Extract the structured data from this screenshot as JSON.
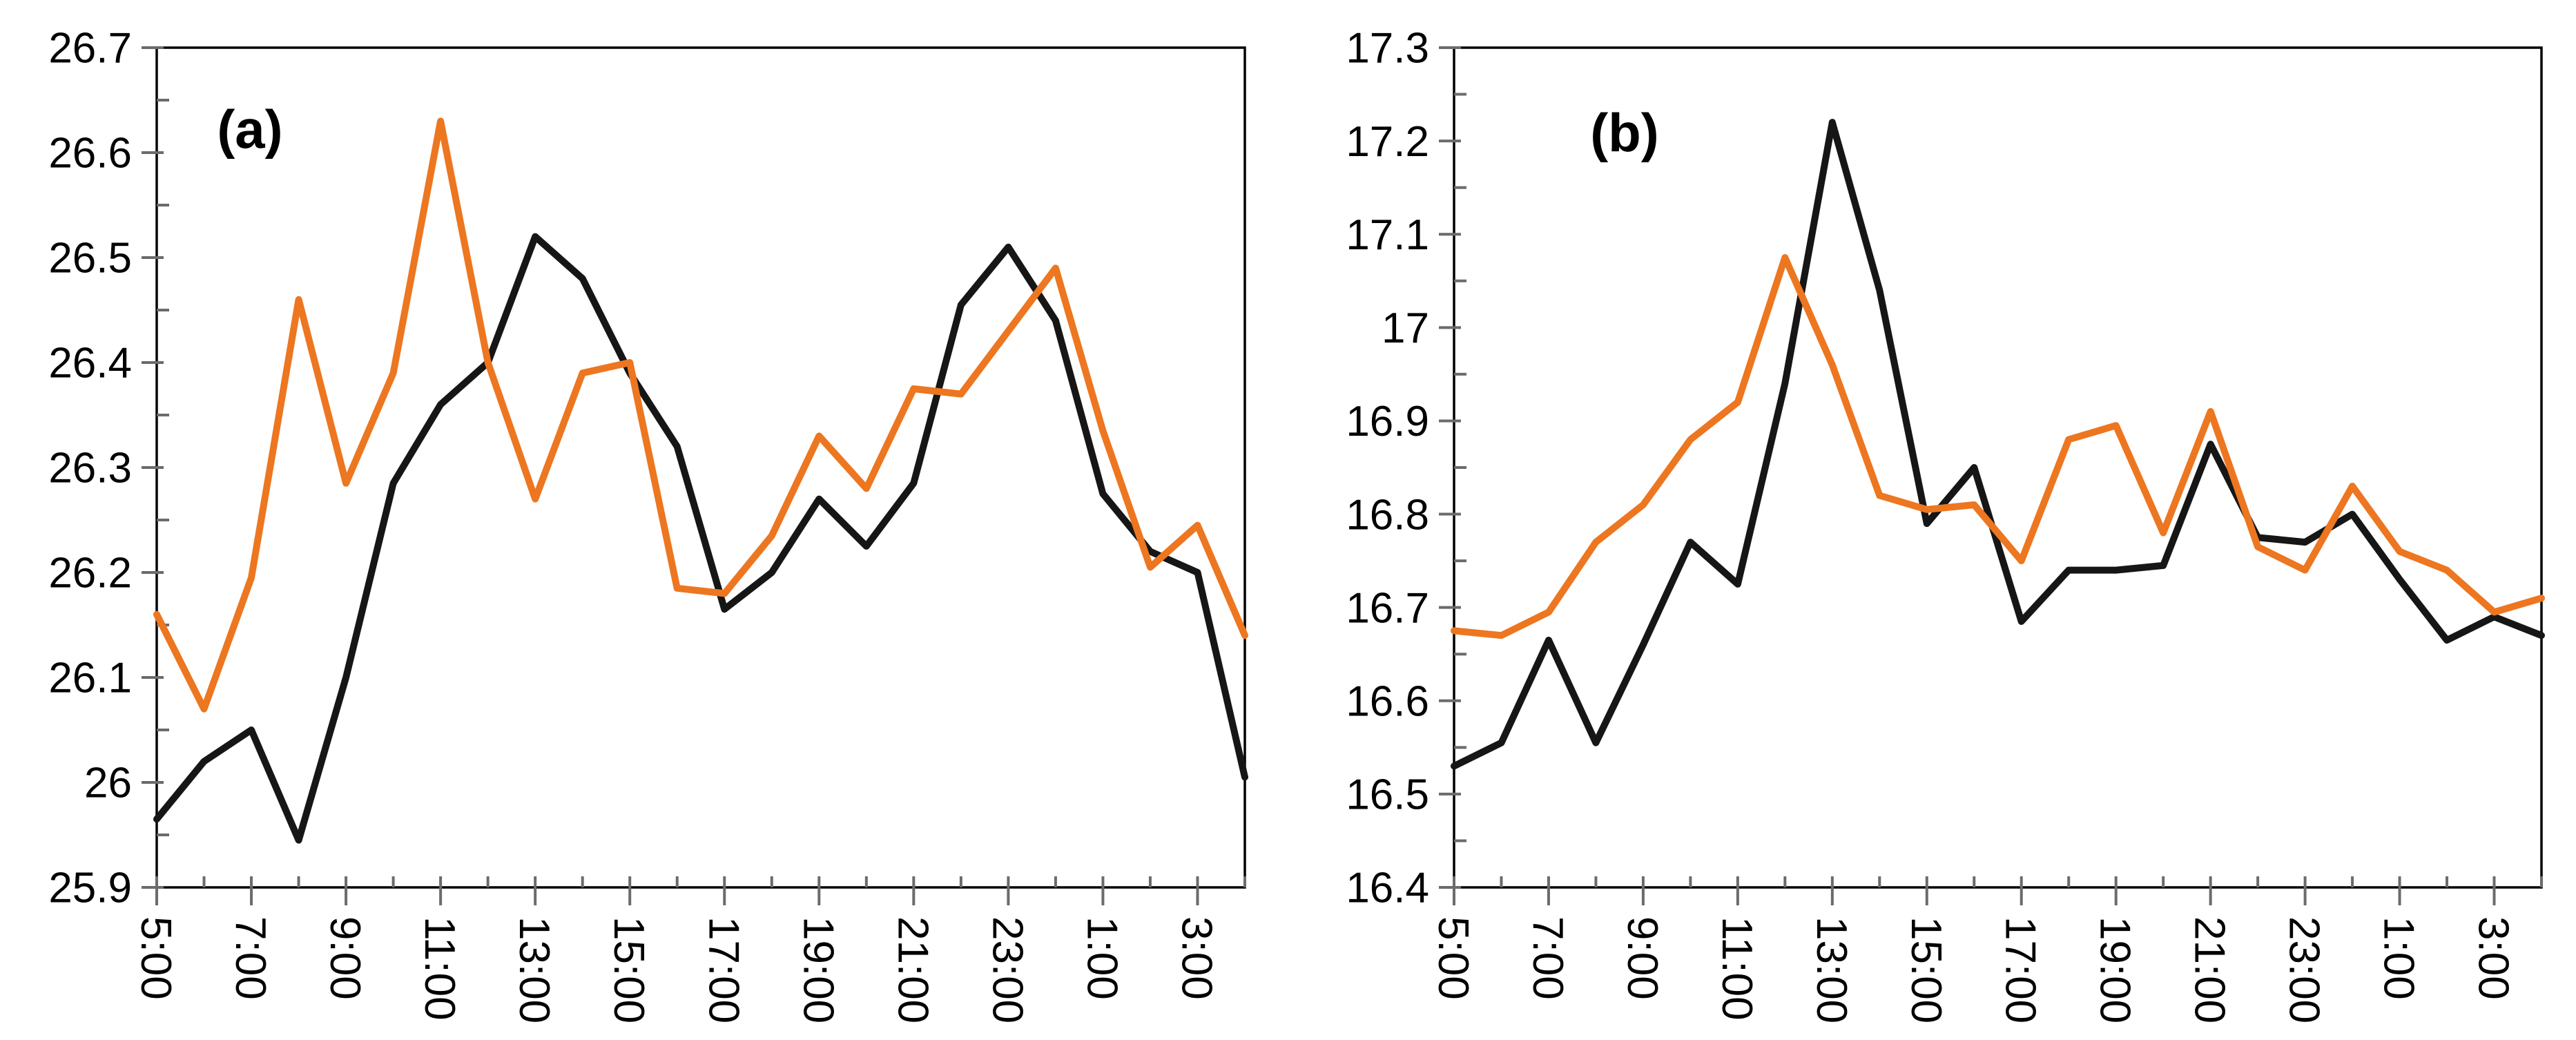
{
  "figure": {
    "background_color": "#ffffff",
    "description_visible_text_only": true
  },
  "chart_data": [
    {
      "type": "line",
      "panel_label": "(a)",
      "title": "",
      "xlabel": "",
      "ylabel": "",
      "grid": false,
      "legend": "none",
      "x": [
        "5:00",
        "6:00",
        "7:00",
        "8:00",
        "9:00",
        "10:00",
        "11:00",
        "12:00",
        "13:00",
        "14:00",
        "15:00",
        "16:00",
        "17:00",
        "18:00",
        "19:00",
        "20:00",
        "21:00",
        "22:00",
        "23:00",
        "0:00",
        "1:00",
        "2:00",
        "3:00",
        "4:00"
      ],
      "x_tick_labels_shown": [
        "5:00",
        "7:00",
        "9:00",
        "11:00",
        "13:00",
        "15:00",
        "17:00",
        "19:00",
        "21:00",
        "23:00",
        "1:00",
        "3:00"
      ],
      "ylim": [
        25.9,
        26.7
      ],
      "y_major_step": 0.1,
      "y_minor_step": 0.05,
      "y_tick_labels_shown": [
        "26.7",
        "26.6",
        "26.5",
        "26.4",
        "26.3",
        "26.2",
        "26.1",
        "26",
        "25.9"
      ],
      "series": [
        {
          "name": "black",
          "color": "#161616",
          "values": [
            25.965,
            26.02,
            26.05,
            25.945,
            26.1,
            26.285,
            26.36,
            26.4,
            26.52,
            26.48,
            26.39,
            26.32,
            26.165,
            26.2,
            26.27,
            26.225,
            26.285,
            26.455,
            26.51,
            26.44,
            26.275,
            26.22,
            26.2,
            26.005
          ]
        },
        {
          "name": "orange",
          "color": "#ED7620",
          "values": [
            26.16,
            26.07,
            26.195,
            26.46,
            26.285,
            26.39,
            26.63,
            26.4,
            26.27,
            26.39,
            26.4,
            26.185,
            26.18,
            26.235,
            26.33,
            26.28,
            26.375,
            26.37,
            26.43,
            26.49,
            26.335,
            26.205,
            26.245,
            26.14
          ]
        }
      ]
    },
    {
      "type": "line",
      "panel_label": "(b)",
      "title": "",
      "xlabel": "",
      "ylabel": "",
      "grid": false,
      "legend": "none",
      "x": [
        "5:00",
        "6:00",
        "7:00",
        "8:00",
        "9:00",
        "10:00",
        "11:00",
        "12:00",
        "13:00",
        "14:00",
        "15:00",
        "16:00",
        "17:00",
        "18:00",
        "19:00",
        "20:00",
        "21:00",
        "22:00",
        "23:00",
        "0:00",
        "1:00",
        "2:00",
        "3:00",
        "4:00"
      ],
      "x_tick_labels_shown": [
        "5:00",
        "7:00",
        "9:00",
        "11:00",
        "13:00",
        "15:00",
        "17:00",
        "19:00",
        "21:00",
        "23:00",
        "1:00",
        "3:00"
      ],
      "ylim": [
        16.4,
        17.3
      ],
      "y_major_step": 0.1,
      "y_minor_step": 0.05,
      "y_tick_labels_shown": [
        "17.3",
        "17.2",
        "17.1",
        "17",
        "16.9",
        "16.8",
        "16.7",
        "16.6",
        "16.5",
        "16.4"
      ],
      "series": [
        {
          "name": "black",
          "color": "#161616",
          "values": [
            16.53,
            16.555,
            16.665,
            16.555,
            16.66,
            16.77,
            16.725,
            16.94,
            17.22,
            17.04,
            16.79,
            16.85,
            16.685,
            16.74,
            16.74,
            16.745,
            16.875,
            16.775,
            16.77,
            16.8,
            16.73,
            16.665,
            16.69,
            16.67
          ]
        },
        {
          "name": "orange",
          "color": "#ED7620",
          "values": [
            16.675,
            16.67,
            16.695,
            16.77,
            16.81,
            16.88,
            16.92,
            17.075,
            16.96,
            16.82,
            16.805,
            16.81,
            16.75,
            16.88,
            16.895,
            16.78,
            16.91,
            16.765,
            16.74,
            16.83,
            16.76,
            16.74,
            16.695,
            16.71
          ]
        }
      ]
    }
  ],
  "style": {
    "axis_color": "#000000",
    "tick_color": "#6b6b6b",
    "label_color": "#000000"
  }
}
